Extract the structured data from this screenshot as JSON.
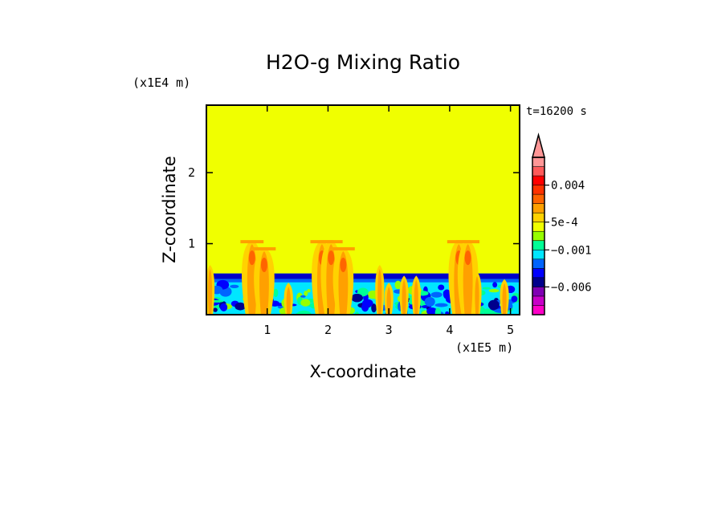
{
  "chart_data": {
    "type": "heatmap",
    "title": "H2O-g Mixing Ratio",
    "xlabel": "X-coordinate",
    "ylabel": "Z-coordinate",
    "x_unit": "(x1E5 m)",
    "y_unit": "(x1E4 m)",
    "time_label": "t=16200 s",
    "xlim": [
      0,
      5.15
    ],
    "ylim": [
      0,
      2.95
    ],
    "x_ticks": [
      {
        "v": 1,
        "label": "1"
      },
      {
        "v": 2,
        "label": "2"
      },
      {
        "v": 3,
        "label": "3"
      },
      {
        "v": 4,
        "label": "4"
      },
      {
        "v": 5,
        "label": "5"
      }
    ],
    "y_ticks": [
      {
        "v": 1,
        "label": "1"
      },
      {
        "v": 2,
        "label": "2"
      }
    ],
    "background_level_color": "#f0ff00",
    "inversion_top": 0.58,
    "plumes": [
      {
        "x": 0.06,
        "top": 0.7
      },
      {
        "x": 0.75,
        "top": 1.05
      },
      {
        "x": 0.95,
        "top": 0.95
      },
      {
        "x": 1.35,
        "top": 0.45
      },
      {
        "x": 1.9,
        "top": 1.05
      },
      {
        "x": 2.05,
        "top": 1.05
      },
      {
        "x": 2.25,
        "top": 0.95
      },
      {
        "x": 2.85,
        "top": 0.7
      },
      {
        "x": 3.0,
        "top": 0.45
      },
      {
        "x": 3.25,
        "top": 0.55
      },
      {
        "x": 3.45,
        "top": 0.55
      },
      {
        "x": 4.15,
        "top": 1.05
      },
      {
        "x": 4.3,
        "top": 1.05
      },
      {
        "x": 4.45,
        "top": 0.6
      },
      {
        "x": 4.9,
        "top": 0.5
      }
    ],
    "colorbar": {
      "levels": [
        "#ff00c8",
        "#c800c8",
        "#8000b4",
        "#00008c",
        "#0000ff",
        "#0064ff",
        "#00e6ff",
        "#00ff96",
        "#96ff00",
        "#f0ff00",
        "#ffd200",
        "#ffa000",
        "#ff6400",
        "#ff3200",
        "#ff0000",
        "#ff5a5a",
        "#ff9696"
      ],
      "tick_labels": [
        "0.004",
        "5e-4",
        "−0.001",
        "−0.006"
      ],
      "extend": "max"
    }
  }
}
